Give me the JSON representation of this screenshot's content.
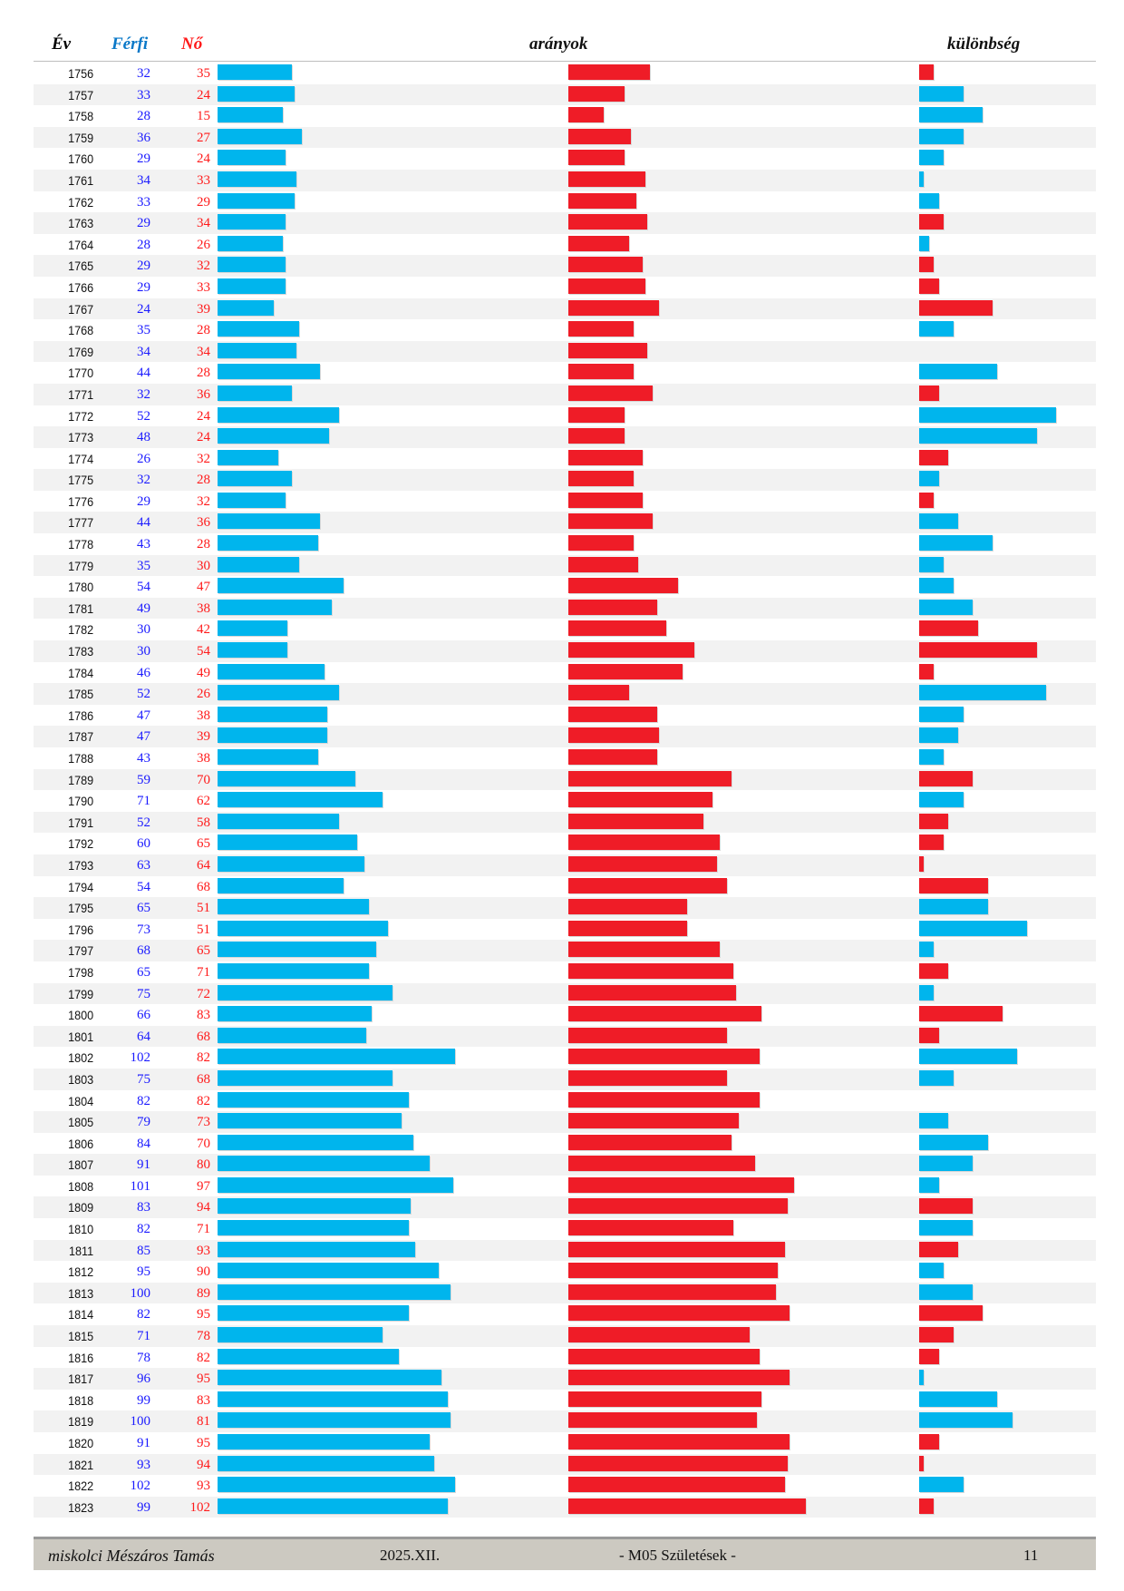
{
  "header": {
    "year": "Év",
    "male": "Férfi",
    "female": "Nő",
    "ratios": "arányok",
    "difference": "különbség"
  },
  "colors": {
    "male": "#00b5ed",
    "female": "#ef1c27",
    "male_text": "#1a1aff",
    "female_text": "#ff1a1a"
  },
  "rows": [
    [
      1756,
      32,
      35
    ],
    [
      1757,
      33,
      24
    ],
    [
      1758,
      28,
      15
    ],
    [
      1759,
      36,
      27
    ],
    [
      1760,
      29,
      24
    ],
    [
      1761,
      34,
      33
    ],
    [
      1762,
      33,
      29
    ],
    [
      1763,
      29,
      34
    ],
    [
      1764,
      28,
      26
    ],
    [
      1765,
      29,
      32
    ],
    [
      1766,
      29,
      33
    ],
    [
      1767,
      24,
      39
    ],
    [
      1768,
      35,
      28
    ],
    [
      1769,
      34,
      34
    ],
    [
      1770,
      44,
      28
    ],
    [
      1771,
      32,
      36
    ],
    [
      1772,
      52,
      24
    ],
    [
      1773,
      48,
      24
    ],
    [
      1774,
      26,
      32
    ],
    [
      1775,
      32,
      28
    ],
    [
      1776,
      29,
      32
    ],
    [
      1777,
      44,
      36
    ],
    [
      1778,
      43,
      28
    ],
    [
      1779,
      35,
      30
    ],
    [
      1780,
      54,
      47
    ],
    [
      1781,
      49,
      38
    ],
    [
      1782,
      30,
      42
    ],
    [
      1783,
      30,
      54
    ],
    [
      1784,
      46,
      49
    ],
    [
      1785,
      52,
      26
    ],
    [
      1786,
      47,
      38
    ],
    [
      1787,
      47,
      39
    ],
    [
      1788,
      43,
      38
    ],
    [
      1789,
      59,
      70
    ],
    [
      1790,
      71,
      62
    ],
    [
      1791,
      52,
      58
    ],
    [
      1792,
      60,
      65
    ],
    [
      1793,
      63,
      64
    ],
    [
      1794,
      54,
      68
    ],
    [
      1795,
      65,
      51
    ],
    [
      1796,
      73,
      51
    ],
    [
      1797,
      68,
      65
    ],
    [
      1798,
      65,
      71
    ],
    [
      1799,
      75,
      72
    ],
    [
      1800,
      66,
      83
    ],
    [
      1801,
      64,
      68
    ],
    [
      1802,
      102,
      82
    ],
    [
      1803,
      75,
      68
    ],
    [
      1804,
      82,
      82
    ],
    [
      1805,
      79,
      73
    ],
    [
      1806,
      84,
      70
    ],
    [
      1807,
      91,
      80
    ],
    [
      1808,
      101,
      97
    ],
    [
      1809,
      83,
      94
    ],
    [
      1810,
      82,
      71
    ],
    [
      1811,
      85,
      93
    ],
    [
      1812,
      95,
      90
    ],
    [
      1813,
      100,
      89
    ],
    [
      1814,
      82,
      95
    ],
    [
      1815,
      71,
      78
    ],
    [
      1816,
      78,
      82
    ],
    [
      1817,
      96,
      95
    ],
    [
      1818,
      99,
      83
    ],
    [
      1819,
      100,
      81
    ],
    [
      1820,
      91,
      95
    ],
    [
      1821,
      93,
      94
    ],
    [
      1822,
      102,
      93
    ],
    [
      1823,
      99,
      102
    ]
  ],
  "footer": {
    "author": "miskolci Mészáros Tamás",
    "date": "2025.XII.",
    "title": "- M05  Születések -",
    "page": "11"
  }
}
